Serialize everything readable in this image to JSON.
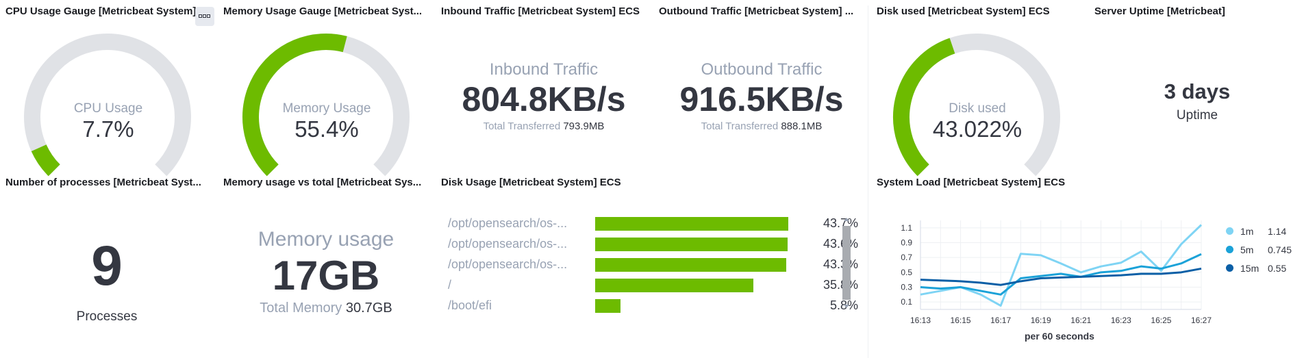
{
  "panels": {
    "cpu": {
      "title": "CPU Usage Gauge [Metricbeat System]...",
      "label": "CPU Usage",
      "value": "7.7%",
      "fraction": 0.077
    },
    "memory": {
      "title": "Memory Usage Gauge [Metricbeat Syst...",
      "label": "Memory Usage",
      "value": "55.4%",
      "fraction": 0.554
    },
    "inbound": {
      "title": "Inbound Traffic [Metricbeat System] ECS",
      "label": "Inbound Traffic",
      "value": "804.8KB/s",
      "sub_label": "Total Transferred",
      "sub_value": "793.9MB"
    },
    "outbound": {
      "title": "Outbound Traffic [Metricbeat System] ...",
      "label": "Outbound Traffic",
      "value": "916.5KB/s",
      "sub_label": "Total Transferred",
      "sub_value": "888.1MB"
    },
    "disk_used": {
      "title": "Disk used [Metricbeat System] ECS",
      "label": "Disk used",
      "value": "43.022%",
      "fraction": 0.43022
    },
    "uptime": {
      "title": "Server Uptime [Metricbeat]",
      "value": "3 days",
      "label": "Uptime"
    },
    "processes": {
      "title": "Number of processes [Metricbeat Syst...",
      "value": "9",
      "label": "Processes"
    },
    "mem_total": {
      "title": "Memory usage vs total [Metricbeat Sys...",
      "label": "Memory usage",
      "value": "17GB",
      "sub_label": "Total Memory",
      "sub_value": "30.7GB"
    },
    "disk_usage": {
      "title": "Disk Usage [Metricbeat System] ECS",
      "rows": [
        {
          "label": "/opt/opensearch/os-...",
          "value": "43.7%",
          "fraction": 0.437
        },
        {
          "label": "/opt/opensearch/os-...",
          "value": "43.6%",
          "fraction": 0.436
        },
        {
          "label": "/opt/opensearch/os-...",
          "value": "43.3%",
          "fraction": 0.433
        },
        {
          "label": "/",
          "value": "35.8%",
          "fraction": 0.358
        },
        {
          "label": "/boot/efi",
          "value": "5.8%",
          "fraction": 0.058
        }
      ]
    },
    "system_load": {
      "title": "System Load [Metricbeat System] ECS",
      "xlabel": "per 60 seconds",
      "legend": [
        {
          "name": "1m",
          "value": "1.14",
          "color": "#7fd4f4"
        },
        {
          "name": "5m",
          "value": "0.745",
          "color": "#1ba2d8"
        },
        {
          "name": "15m",
          "value": "0.55",
          "color": "#0b5fa6"
        }
      ]
    }
  },
  "colors": {
    "green": "#6dbb00",
    "track": "#e0e2e6"
  },
  "chart_data": {
    "type": "line",
    "x": [
      "16:13",
      "16:14",
      "16:15",
      "16:16",
      "16:17",
      "16:18",
      "16:19",
      "16:20",
      "16:21",
      "16:22",
      "16:23",
      "16:24",
      "16:25",
      "16:26",
      "16:27"
    ],
    "x_ticks": [
      "16:13",
      "16:15",
      "16:17",
      "16:19",
      "16:21",
      "16:23",
      "16:25",
      "16:27"
    ],
    "y_ticks": [
      "0.1",
      "0.3",
      "0.5",
      "0.7",
      "0.9",
      "1.1"
    ],
    "ylim": [
      0,
      1.2
    ],
    "series": [
      {
        "name": "1m",
        "color": "#7fd4f4",
        "values": [
          0.2,
          0.25,
          0.3,
          0.2,
          0.05,
          0.75,
          0.73,
          0.62,
          0.5,
          0.58,
          0.63,
          0.78,
          0.52,
          0.88,
          1.14
        ]
      },
      {
        "name": "5m",
        "color": "#1ba2d8",
        "values": [
          0.3,
          0.28,
          0.3,
          0.25,
          0.2,
          0.42,
          0.45,
          0.48,
          0.44,
          0.5,
          0.52,
          0.58,
          0.55,
          0.62,
          0.745
        ]
      },
      {
        "name": "15m",
        "color": "#0b5fa6",
        "values": [
          0.4,
          0.39,
          0.38,
          0.36,
          0.33,
          0.38,
          0.42,
          0.43,
          0.44,
          0.45,
          0.46,
          0.48,
          0.48,
          0.5,
          0.55
        ]
      }
    ]
  }
}
